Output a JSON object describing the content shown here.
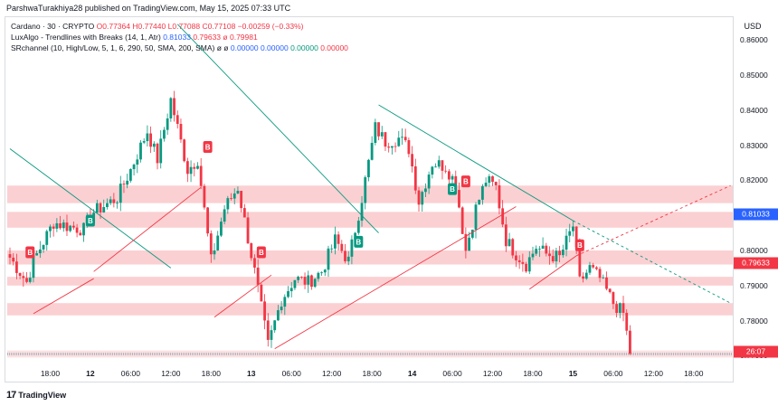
{
  "header": {
    "publisher_line": "ParshwaTurakhiya28 published on TradingView.com, May 15, 2025 07:33 UTC"
  },
  "legend": {
    "line1": {
      "symbol": "Cardano · 30 · CRYPTO",
      "o": "O0.77364",
      "h": "H0.77440",
      "l": "L0.77088",
      "c": "C0.77108",
      "chg": "−0.00259 (−0.33%)"
    },
    "line2": {
      "name": "LuxAlgo - Trendlines with Breaks (14, 1, Atr)",
      "v1": "0.81033",
      "v2": "0.79633",
      "v3": "ø 0.79981"
    },
    "line3": {
      "name": "SRchannel (10, High/Low, 5, 1, 6, 290, 50, SMA, 200, SMA)  ø  ø",
      "v1": "0.00000",
      "v2": "0.00000",
      "v3": "0.00000",
      "v4": "0.00000"
    }
  },
  "currency": "USD",
  "footer": {
    "brand": "TradingView",
    "logo": "17"
  },
  "colors": {
    "up": "#089981",
    "down": "#f23645",
    "zone": "#f7a9ad",
    "trend": "#089981",
    "accent_blue": "#2962ff"
  },
  "chart_data": {
    "type": "candlestick",
    "y_ticks": [
      "0.86000",
      "0.85000",
      "0.84000",
      "0.83000",
      "0.82000",
      "0.81033",
      "0.80000",
      "0.79633",
      "0.79000",
      "0.78000",
      "0.77000"
    ],
    "ylim": [
      0.7665,
      0.8665
    ],
    "price_labels": [
      {
        "text": "0.81033",
        "value": 0.81033,
        "color": "#2962ff"
      },
      {
        "text": "0.79633",
        "value": 0.79633,
        "color": "#f23645"
      },
      {
        "text": "26:07",
        "value": 0.7711,
        "color": "#f23645"
      }
    ],
    "x_ticks": [
      {
        "label": "18:00",
        "bar": 12,
        "bold": false
      },
      {
        "label": "12",
        "bar": 24,
        "bold": true
      },
      {
        "label": "06:00",
        "bar": 36,
        "bold": false
      },
      {
        "label": "12:00",
        "bar": 48,
        "bold": false
      },
      {
        "label": "18:00",
        "bar": 60,
        "bold": false
      },
      {
        "label": "13",
        "bar": 72,
        "bold": true
      },
      {
        "label": "06:00",
        "bar": 84,
        "bold": false
      },
      {
        "label": "12:00",
        "bar": 96,
        "bold": false
      },
      {
        "label": "18:00",
        "bar": 108,
        "bold": false
      },
      {
        "label": "14",
        "bar": 120,
        "bold": true
      },
      {
        "label": "06:00",
        "bar": 132,
        "bold": false
      },
      {
        "label": "12:00",
        "bar": 144,
        "bold": false
      },
      {
        "label": "18:00",
        "bar": 156,
        "bold": false
      },
      {
        "label": "15",
        "bar": 168,
        "bold": true
      },
      {
        "label": "06:00",
        "bar": 180,
        "bold": false
      },
      {
        "label": "12:00",
        "bar": 192,
        "bold": false
      },
      {
        "label": "18:00",
        "bar": 204,
        "bold": false
      }
    ],
    "anchors": [
      [
        0,
        0.798
      ],
      [
        5,
        0.791
      ],
      [
        7,
        0.797
      ],
      [
        13,
        0.808
      ],
      [
        17,
        0.807
      ],
      [
        22,
        0.806
      ],
      [
        25,
        0.811
      ],
      [
        32,
        0.815
      ],
      [
        36,
        0.823
      ],
      [
        41,
        0.834
      ],
      [
        44,
        0.826
      ],
      [
        48,
        0.843
      ],
      [
        50,
        0.835
      ],
      [
        53,
        0.823
      ],
      [
        56,
        0.826
      ],
      [
        60,
        0.797
      ],
      [
        64,
        0.812
      ],
      [
        68,
        0.818
      ],
      [
        73,
        0.794
      ],
      [
        77,
        0.773
      ],
      [
        81,
        0.786
      ],
      [
        85,
        0.792
      ],
      [
        89,
        0.791
      ],
      [
        93,
        0.794
      ],
      [
        97,
        0.803
      ],
      [
        101,
        0.797
      ],
      [
        105,
        0.815
      ],
      [
        109,
        0.835
      ],
      [
        112,
        0.831
      ],
      [
        116,
        0.832
      ],
      [
        119,
        0.829
      ],
      [
        122,
        0.814
      ],
      [
        126,
        0.825
      ],
      [
        130,
        0.824
      ],
      [
        133,
        0.819
      ],
      [
        136,
        0.8
      ],
      [
        139,
        0.812
      ],
      [
        142,
        0.82
      ],
      [
        145,
        0.818
      ],
      [
        148,
        0.803
      ],
      [
        151,
        0.799
      ],
      [
        154,
        0.796
      ],
      [
        157,
        0.801
      ],
      [
        160,
        0.799
      ],
      [
        164,
        0.798
      ],
      [
        168,
        0.807
      ],
      [
        170,
        0.791
      ],
      [
        173,
        0.795
      ],
      [
        176,
        0.792
      ],
      [
        180,
        0.785
      ],
      [
        183,
        0.782
      ],
      [
        185,
        0.771
      ]
    ],
    "sr_zones": [
      [
        0.8135,
        0.8185
      ],
      [
        0.8065,
        0.811
      ],
      [
        0.796,
        0.8
      ],
      [
        0.79,
        0.7925
      ],
      [
        0.7815,
        0.785
      ],
      [
        0.7695,
        0.7715
      ]
    ],
    "trendlines": [
      {
        "bars": [
          0,
          48
        ],
        "values": [
          0.829,
          0.795
        ],
        "color": "#089981"
      },
      {
        "bars": [
          50,
          110
        ],
        "values": [
          0.8645,
          0.805
        ],
        "color": "#089981"
      },
      {
        "bars": [
          110,
          168
        ],
        "values": [
          0.8415,
          0.8085
        ],
        "color": "#089981"
      },
      {
        "bars": [
          7,
          25
        ],
        "values": [
          0.782,
          0.792
        ],
        "color": "#f23645"
      },
      {
        "bars": [
          25,
          57
        ],
        "values": [
          0.794,
          0.818
        ],
        "color": "#f23645"
      },
      {
        "bars": [
          61,
          78
        ],
        "values": [
          0.781,
          0.793
        ],
        "color": "#f23645"
      },
      {
        "bars": [
          79,
          151
        ],
        "values": [
          0.772,
          0.8125
        ],
        "color": "#f23645"
      },
      {
        "bars": [
          155,
          169
        ],
        "values": [
          0.789,
          0.7985
        ],
        "color": "#f23645"
      }
    ],
    "dashed_extensions": [
      {
        "bars": [
          168,
          215
        ],
        "values": [
          0.8085,
          0.785
        ],
        "color": "#089981"
      },
      {
        "bars": [
          169,
          215
        ],
        "values": [
          0.7985,
          0.8185
        ],
        "color": "#f23645"
      }
    ],
    "break_markers": [
      {
        "bar": 6,
        "value": 0.7995,
        "text": "B",
        "color": "#f23645"
      },
      {
        "bar": 24,
        "value": 0.8085,
        "text": "B",
        "color": "#089981"
      },
      {
        "bar": 59,
        "value": 0.8295,
        "text": "B",
        "color": "#f23645"
      },
      {
        "bar": 75,
        "value": 0.7995,
        "text": "B",
        "color": "#f23645"
      },
      {
        "bar": 104,
        "value": 0.8025,
        "text": "B",
        "color": "#089981"
      },
      {
        "bar": 132,
        "value": 0.8175,
        "text": "B",
        "color": "#089981"
      },
      {
        "bar": 136,
        "value": 0.8197,
        "text": "B",
        "color": "#f23645"
      },
      {
        "bar": 170,
        "value": 0.8015,
        "text": "B",
        "color": "#f23645"
      }
    ]
  }
}
